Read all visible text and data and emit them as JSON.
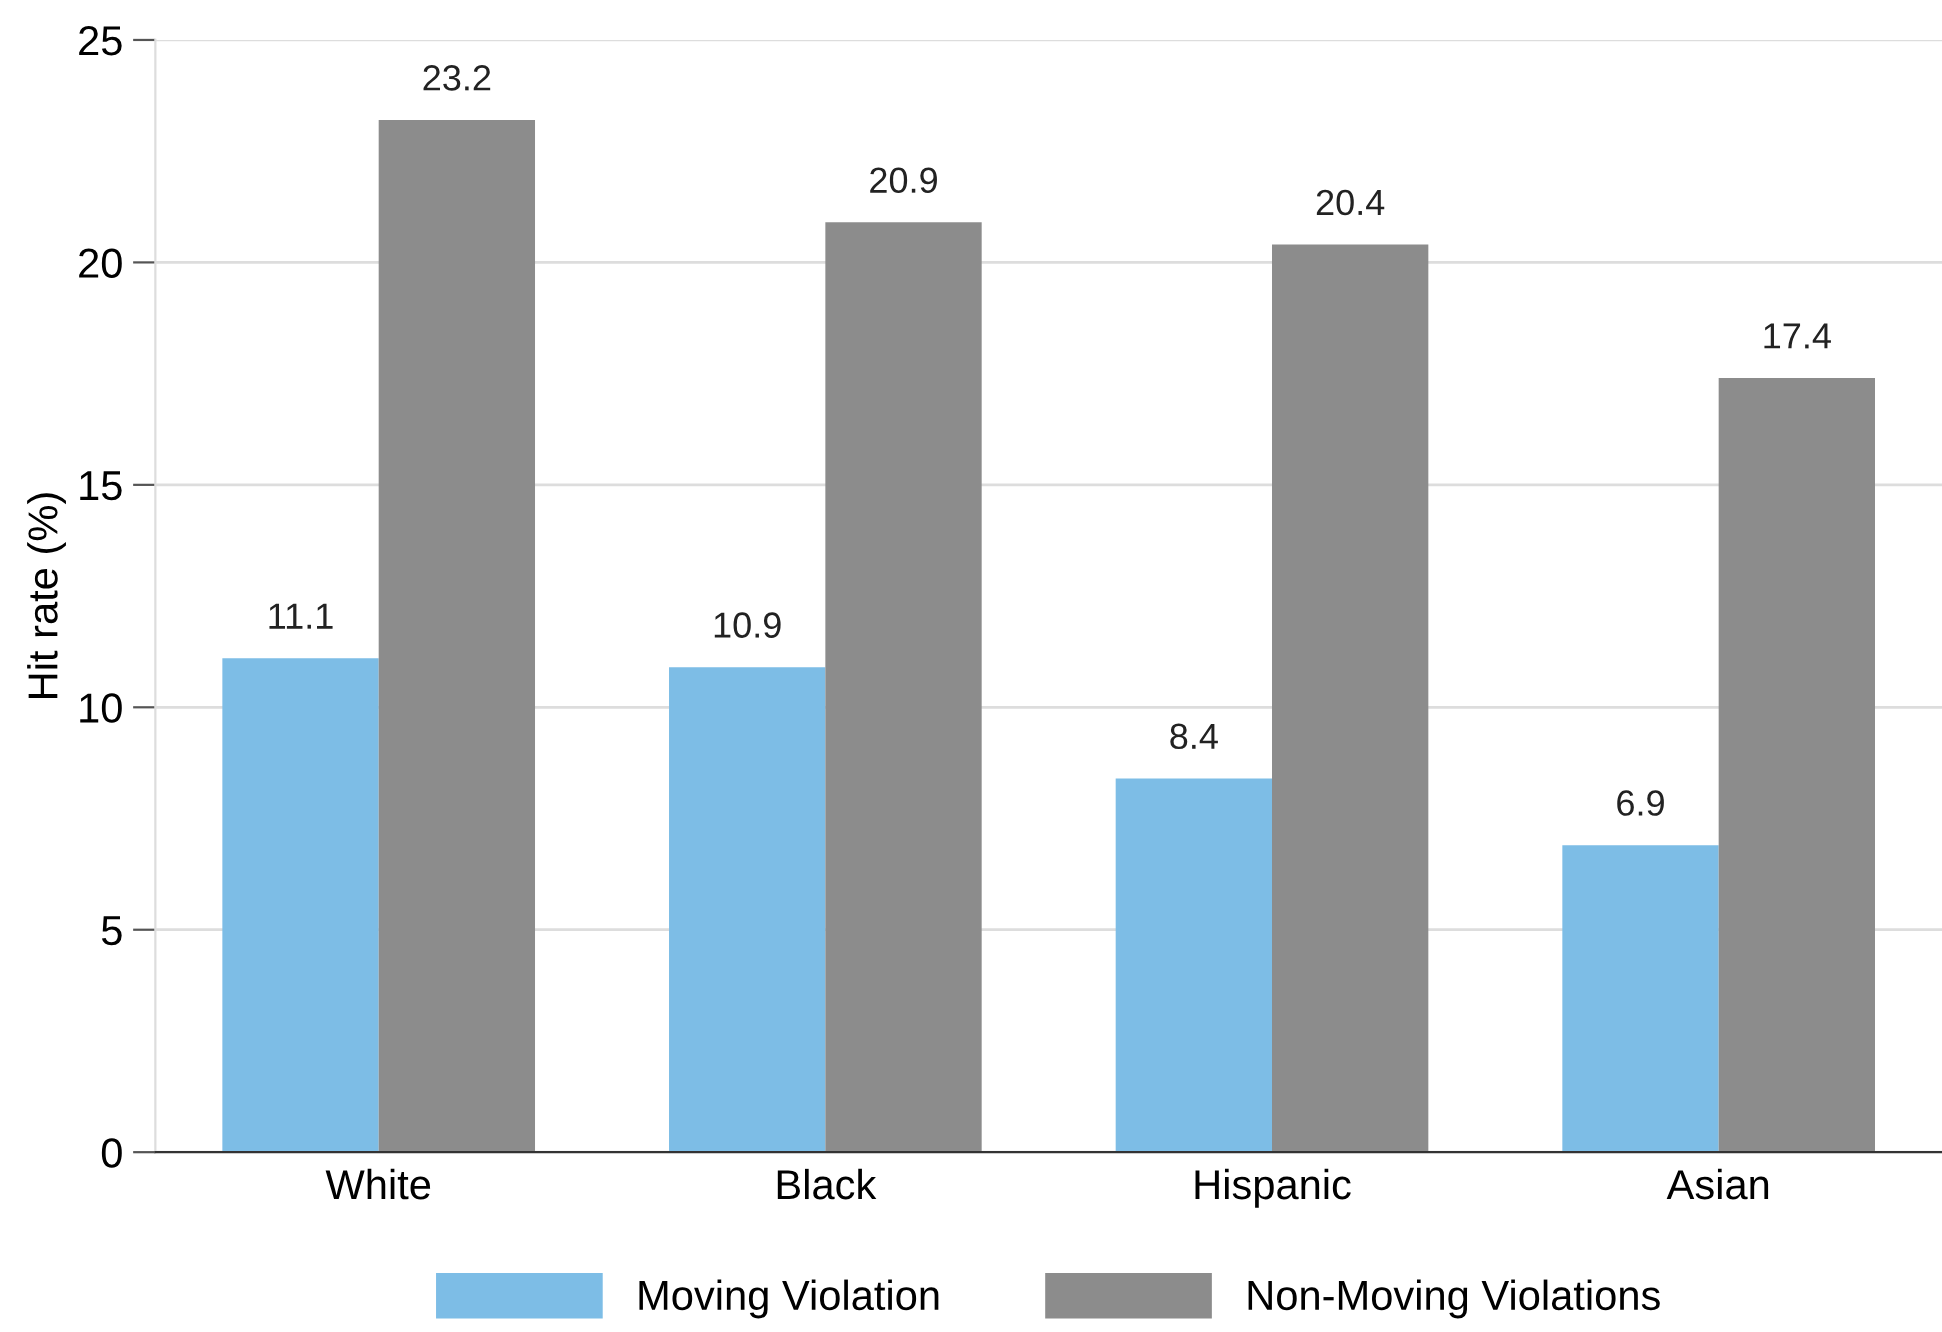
{
  "chart_data": {
    "type": "bar",
    "ylabel": "Hit rate (%)",
    "categories": [
      "White",
      "Black",
      "Hispanic",
      "Asian"
    ],
    "series": [
      {
        "name": "Moving Violation",
        "color": "#7dbde6",
        "values": [
          11.1,
          10.9,
          8.4,
          6.9
        ]
      },
      {
        "name": "Non-Moving Violations",
        "color": "#8c8c8c",
        "values": [
          23.2,
          20.9,
          20.4,
          17.4
        ]
      }
    ],
    "ylim": [
      0,
      25
    ],
    "yticks": [
      0,
      5,
      10,
      15,
      20,
      25
    ],
    "grid": "y",
    "data_labels": true,
    "legend": "bottom"
  }
}
